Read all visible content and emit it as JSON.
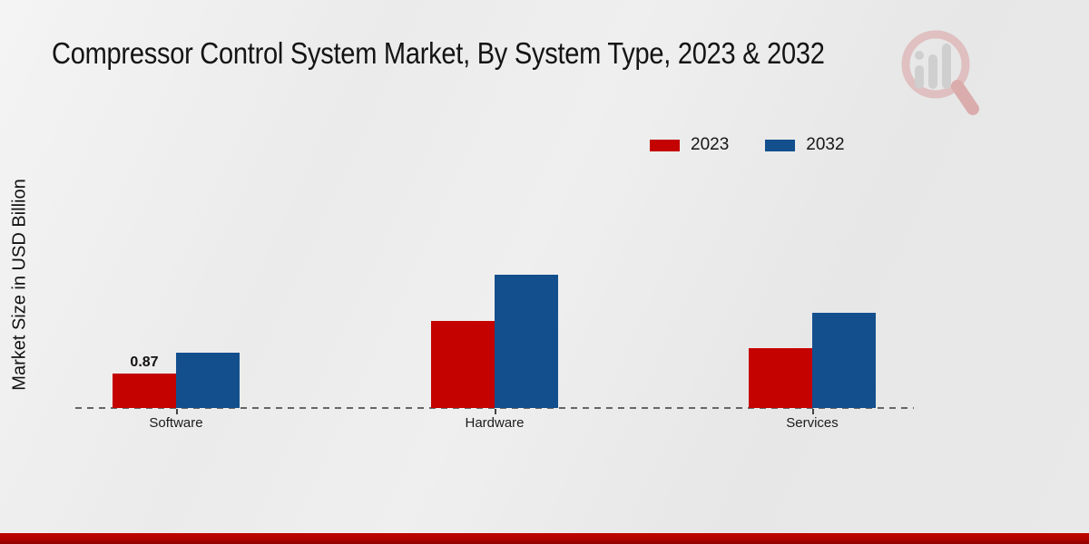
{
  "title": "Compressor Control System Market, By System Type, 2023 & 2032",
  "y_axis_label": "Market Size in USD Billion",
  "legend": [
    {
      "label": "2023",
      "color": "#c40300"
    },
    {
      "label": "2032",
      "color": "#134f8d"
    }
  ],
  "watermark_icon": "magnifier-bar-chart-logo",
  "footer_accent_color": "#b00300",
  "chart_data": {
    "type": "bar",
    "categories": [
      "Software",
      "Hardware",
      "Services"
    ],
    "series": [
      {
        "name": "2023",
        "color": "#c40300",
        "values": [
          0.87,
          2.2,
          1.5
        ],
        "labels": [
          "0.87",
          "",
          ""
        ]
      },
      {
        "name": "2032",
        "color": "#134f8d",
        "values": [
          1.4,
          3.36,
          2.4
        ],
        "labels": [
          "",
          "",
          ""
        ]
      }
    ],
    "title": "Compressor Control System Market, By System Type, 2023 & 2032",
    "xlabel": "",
    "ylabel": "Market Size in USD Billion",
    "ylim": [
      0,
      3.5
    ],
    "grid": false,
    "y_axis_ticks_shown": false,
    "baseline_style": "dashed",
    "legend_position": "top-right",
    "data_labels_shown": [
      "Software 2023 = 0.87"
    ]
  }
}
